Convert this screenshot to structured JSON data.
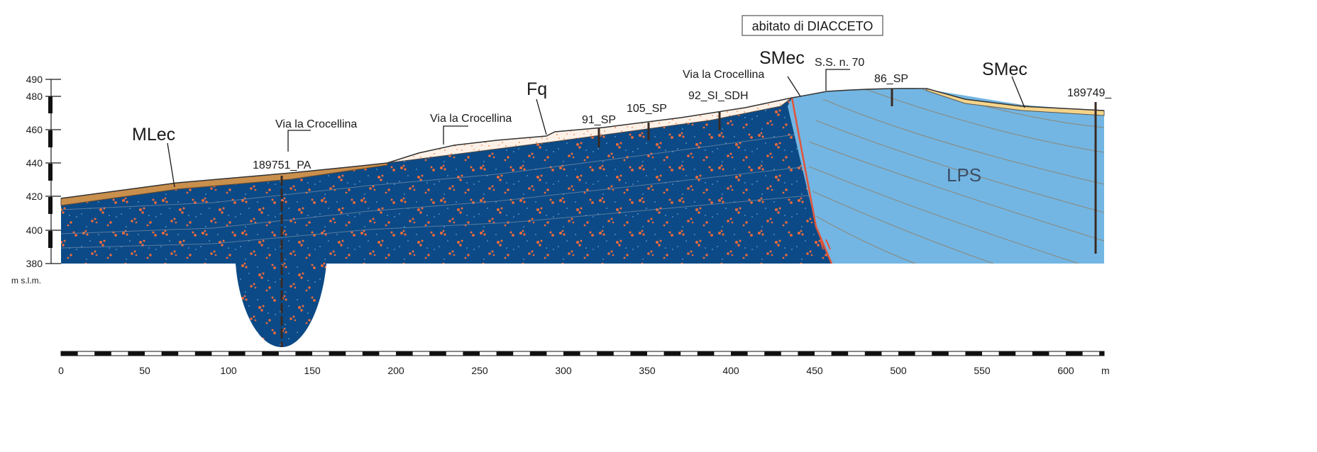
{
  "title": "abitato di DIACCETO",
  "units": {
    "vertical": "m s.l.m.",
    "horizontal": "m"
  },
  "elevation_ticks": [
    "490",
    "480",
    "460",
    "440",
    "420",
    "400",
    "380"
  ],
  "distance_ticks": [
    "0",
    "50",
    "100",
    "150",
    "200",
    "250",
    "300",
    "350",
    "400",
    "450",
    "500",
    "550",
    "600"
  ],
  "units_labels": {
    "mlec": "MLec",
    "fq": "Fq",
    "smec_left": "SMec",
    "smec_right": "SMec",
    "lps": "LPS"
  },
  "road_labels": [
    "Via la Crocellina",
    "Via la Crocellina",
    "Via la Crocellina",
    "S.S. n. 70"
  ],
  "boreholes": [
    "189751_PA",
    "91_SP",
    "105_SP",
    "92_SI_SDH",
    "86_SP",
    "189749_"
  ],
  "colors": {
    "bedrock": "#0b4a86",
    "lps": "#73b6e3",
    "fq": "#fbe9dc",
    "mlec": "#c98f4d",
    "smec": "#f4d48a",
    "clasts": "#ef6a3a",
    "fault": "#e0553a"
  }
}
